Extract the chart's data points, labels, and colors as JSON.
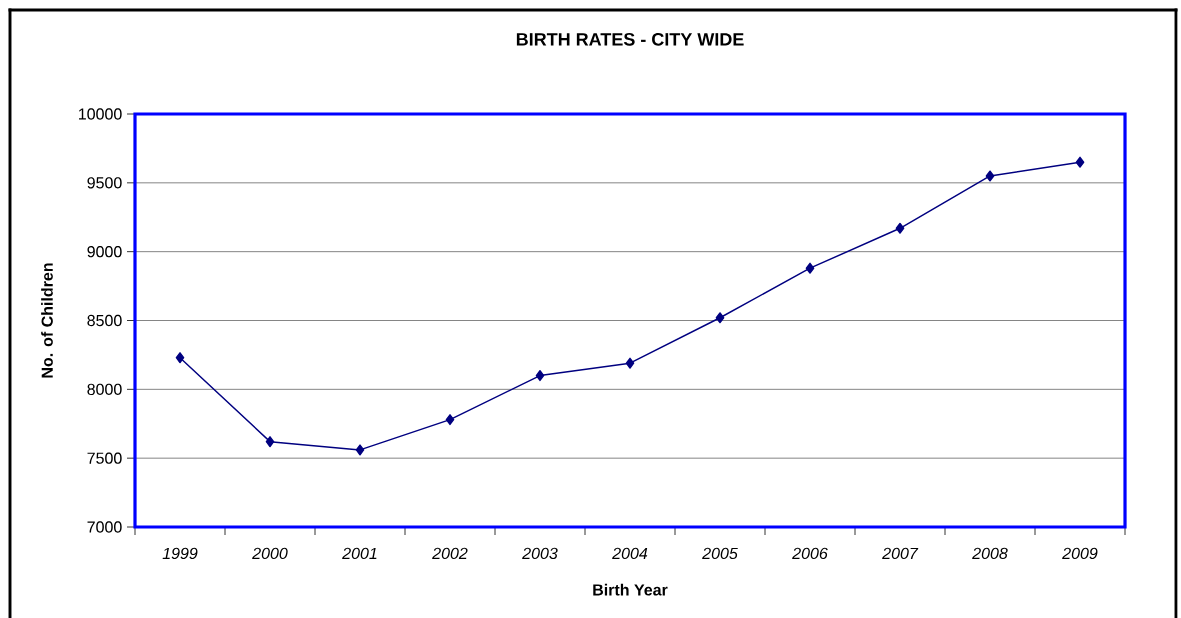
{
  "chart_data": {
    "type": "line",
    "title": "BIRTH RATES - CITY WIDE",
    "xlabel": "Birth Year",
    "ylabel": "No. of Children",
    "categories": [
      "1999",
      "2000",
      "2001",
      "2002",
      "2003",
      "2004",
      "2005",
      "2006",
      "2007",
      "2008",
      "2009"
    ],
    "series": [
      {
        "color": "#000080",
        "values": [
          8230,
          7620,
          7560,
          7780,
          8100,
          8190,
          8520,
          8880,
          9170,
          9550,
          9650
        ]
      }
    ],
    "ylim": [
      7000,
      10000
    ],
    "yticks": [
      7000,
      7500,
      8000,
      8500,
      9000,
      9500,
      10000
    ],
    "grid": "y",
    "marker": "diamond",
    "line_style": "solid"
  }
}
